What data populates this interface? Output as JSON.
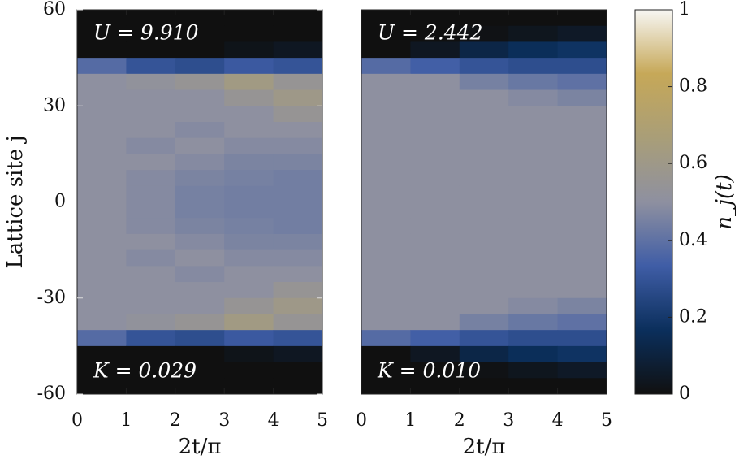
{
  "chart_data": [
    {
      "type": "heatmap",
      "annotations": [
        "U = 9.910",
        "K = 0.029"
      ],
      "xlabel": "2t/π",
      "ylabel": "Lattice site j",
      "xlim": [
        0,
        5
      ],
      "xticks": [
        0,
        1,
        2,
        3,
        4,
        5
      ],
      "ylim": [
        -60,
        60
      ],
      "yticks": [
        -60,
        -30,
        0,
        30,
        60
      ],
      "x_bins": [
        0,
        1,
        2,
        3,
        4,
        5
      ],
      "y_bins": [
        60,
        55,
        50,
        45,
        40,
        35,
        30,
        25,
        20,
        15,
        10,
        5,
        0,
        -5,
        -10,
        -15,
        -20,
        -25,
        -30,
        -35,
        -40,
        -45,
        -50,
        -55,
        -60
      ],
      "values": [
        [
          0,
          0,
          0,
          0,
          0
        ],
        [
          0,
          0,
          0,
          0,
          0
        ],
        [
          0,
          0,
          0,
          0.02,
          0.04
        ],
        [
          0.38,
          0.3,
          0.28,
          0.32,
          0.3
        ],
        [
          0.5,
          0.52,
          0.55,
          0.62,
          0.55
        ],
        [
          0.5,
          0.5,
          0.5,
          0.55,
          0.6
        ],
        [
          0.5,
          0.5,
          0.5,
          0.5,
          0.55
        ],
        [
          0.5,
          0.5,
          0.48,
          0.5,
          0.5
        ],
        [
          0.5,
          0.48,
          0.5,
          0.48,
          0.48
        ],
        [
          0.5,
          0.5,
          0.48,
          0.46,
          0.46
        ],
        [
          0.5,
          0.48,
          0.46,
          0.45,
          0.44
        ],
        [
          0.5,
          0.48,
          0.45,
          0.44,
          0.44
        ],
        [
          0.5,
          0.48,
          0.45,
          0.44,
          0.44
        ],
        [
          0.5,
          0.48,
          0.46,
          0.45,
          0.44
        ],
        [
          0.5,
          0.5,
          0.48,
          0.46,
          0.46
        ],
        [
          0.5,
          0.48,
          0.5,
          0.48,
          0.48
        ],
        [
          0.5,
          0.5,
          0.48,
          0.5,
          0.5
        ],
        [
          0.5,
          0.5,
          0.5,
          0.5,
          0.55
        ],
        [
          0.5,
          0.5,
          0.5,
          0.55,
          0.6
        ],
        [
          0.5,
          0.52,
          0.55,
          0.62,
          0.55
        ],
        [
          0.38,
          0.3,
          0.28,
          0.32,
          0.3
        ],
        [
          0,
          0,
          0,
          0.02,
          0.04
        ],
        [
          0,
          0,
          0,
          0,
          0
        ],
        [
          0,
          0,
          0,
          0,
          0
        ]
      ]
    },
    {
      "type": "heatmap",
      "annotations": [
        "U = 2.442",
        "K = 0.010"
      ],
      "xlabel": "2t/π",
      "xlim": [
        0,
        5
      ],
      "xticks": [
        0,
        1,
        2,
        3,
        4,
        5
      ],
      "ylim": [
        -60,
        60
      ],
      "x_bins": [
        0,
        1,
        2,
        3,
        4,
        5
      ],
      "y_bins": [
        60,
        55,
        50,
        45,
        40,
        35,
        30,
        25,
        20,
        15,
        10,
        5,
        0,
        -5,
        -10,
        -15,
        -20,
        -25,
        -30,
        -35,
        -40,
        -45,
        -50,
        -55,
        -60
      ],
      "values": [
        [
          0,
          0,
          0,
          0,
          0
        ],
        [
          0,
          0,
          0.01,
          0.03,
          0.05
        ],
        [
          0,
          0.04,
          0.12,
          0.16,
          0.18
        ],
        [
          0.38,
          0.34,
          0.3,
          0.28,
          0.28
        ],
        [
          0.5,
          0.5,
          0.45,
          0.42,
          0.4
        ],
        [
          0.5,
          0.5,
          0.5,
          0.48,
          0.46
        ],
        [
          0.5,
          0.5,
          0.5,
          0.5,
          0.5
        ],
        [
          0.5,
          0.5,
          0.5,
          0.5,
          0.5
        ],
        [
          0.5,
          0.5,
          0.5,
          0.5,
          0.5
        ],
        [
          0.5,
          0.5,
          0.5,
          0.5,
          0.5
        ],
        [
          0.5,
          0.5,
          0.5,
          0.5,
          0.5
        ],
        [
          0.5,
          0.5,
          0.5,
          0.5,
          0.5
        ],
        [
          0.5,
          0.5,
          0.5,
          0.5,
          0.5
        ],
        [
          0.5,
          0.5,
          0.5,
          0.5,
          0.5
        ],
        [
          0.5,
          0.5,
          0.5,
          0.5,
          0.5
        ],
        [
          0.5,
          0.5,
          0.5,
          0.5,
          0.5
        ],
        [
          0.5,
          0.5,
          0.5,
          0.5,
          0.5
        ],
        [
          0.5,
          0.5,
          0.5,
          0.5,
          0.5
        ],
        [
          0.5,
          0.5,
          0.5,
          0.48,
          0.46
        ],
        [
          0.5,
          0.5,
          0.45,
          0.42,
          0.4
        ],
        [
          0.38,
          0.34,
          0.3,
          0.28,
          0.28
        ],
        [
          0,
          0.04,
          0.12,
          0.16,
          0.18
        ],
        [
          0,
          0,
          0.01,
          0.03,
          0.05
        ],
        [
          0,
          0,
          0,
          0,
          0
        ]
      ]
    },
    {
      "type": "colorbar",
      "label": "n_j(t)",
      "clim": [
        0,
        1
      ],
      "ticks": [
        0,
        0.2,
        0.4,
        0.6,
        0.8,
        1
      ],
      "colormap": [
        "#101010",
        "#0b2f5c",
        "#3f5da6",
        "#8e90a0",
        "#a99e78",
        "#c6a858",
        "#f7f7f4"
      ]
    }
  ]
}
